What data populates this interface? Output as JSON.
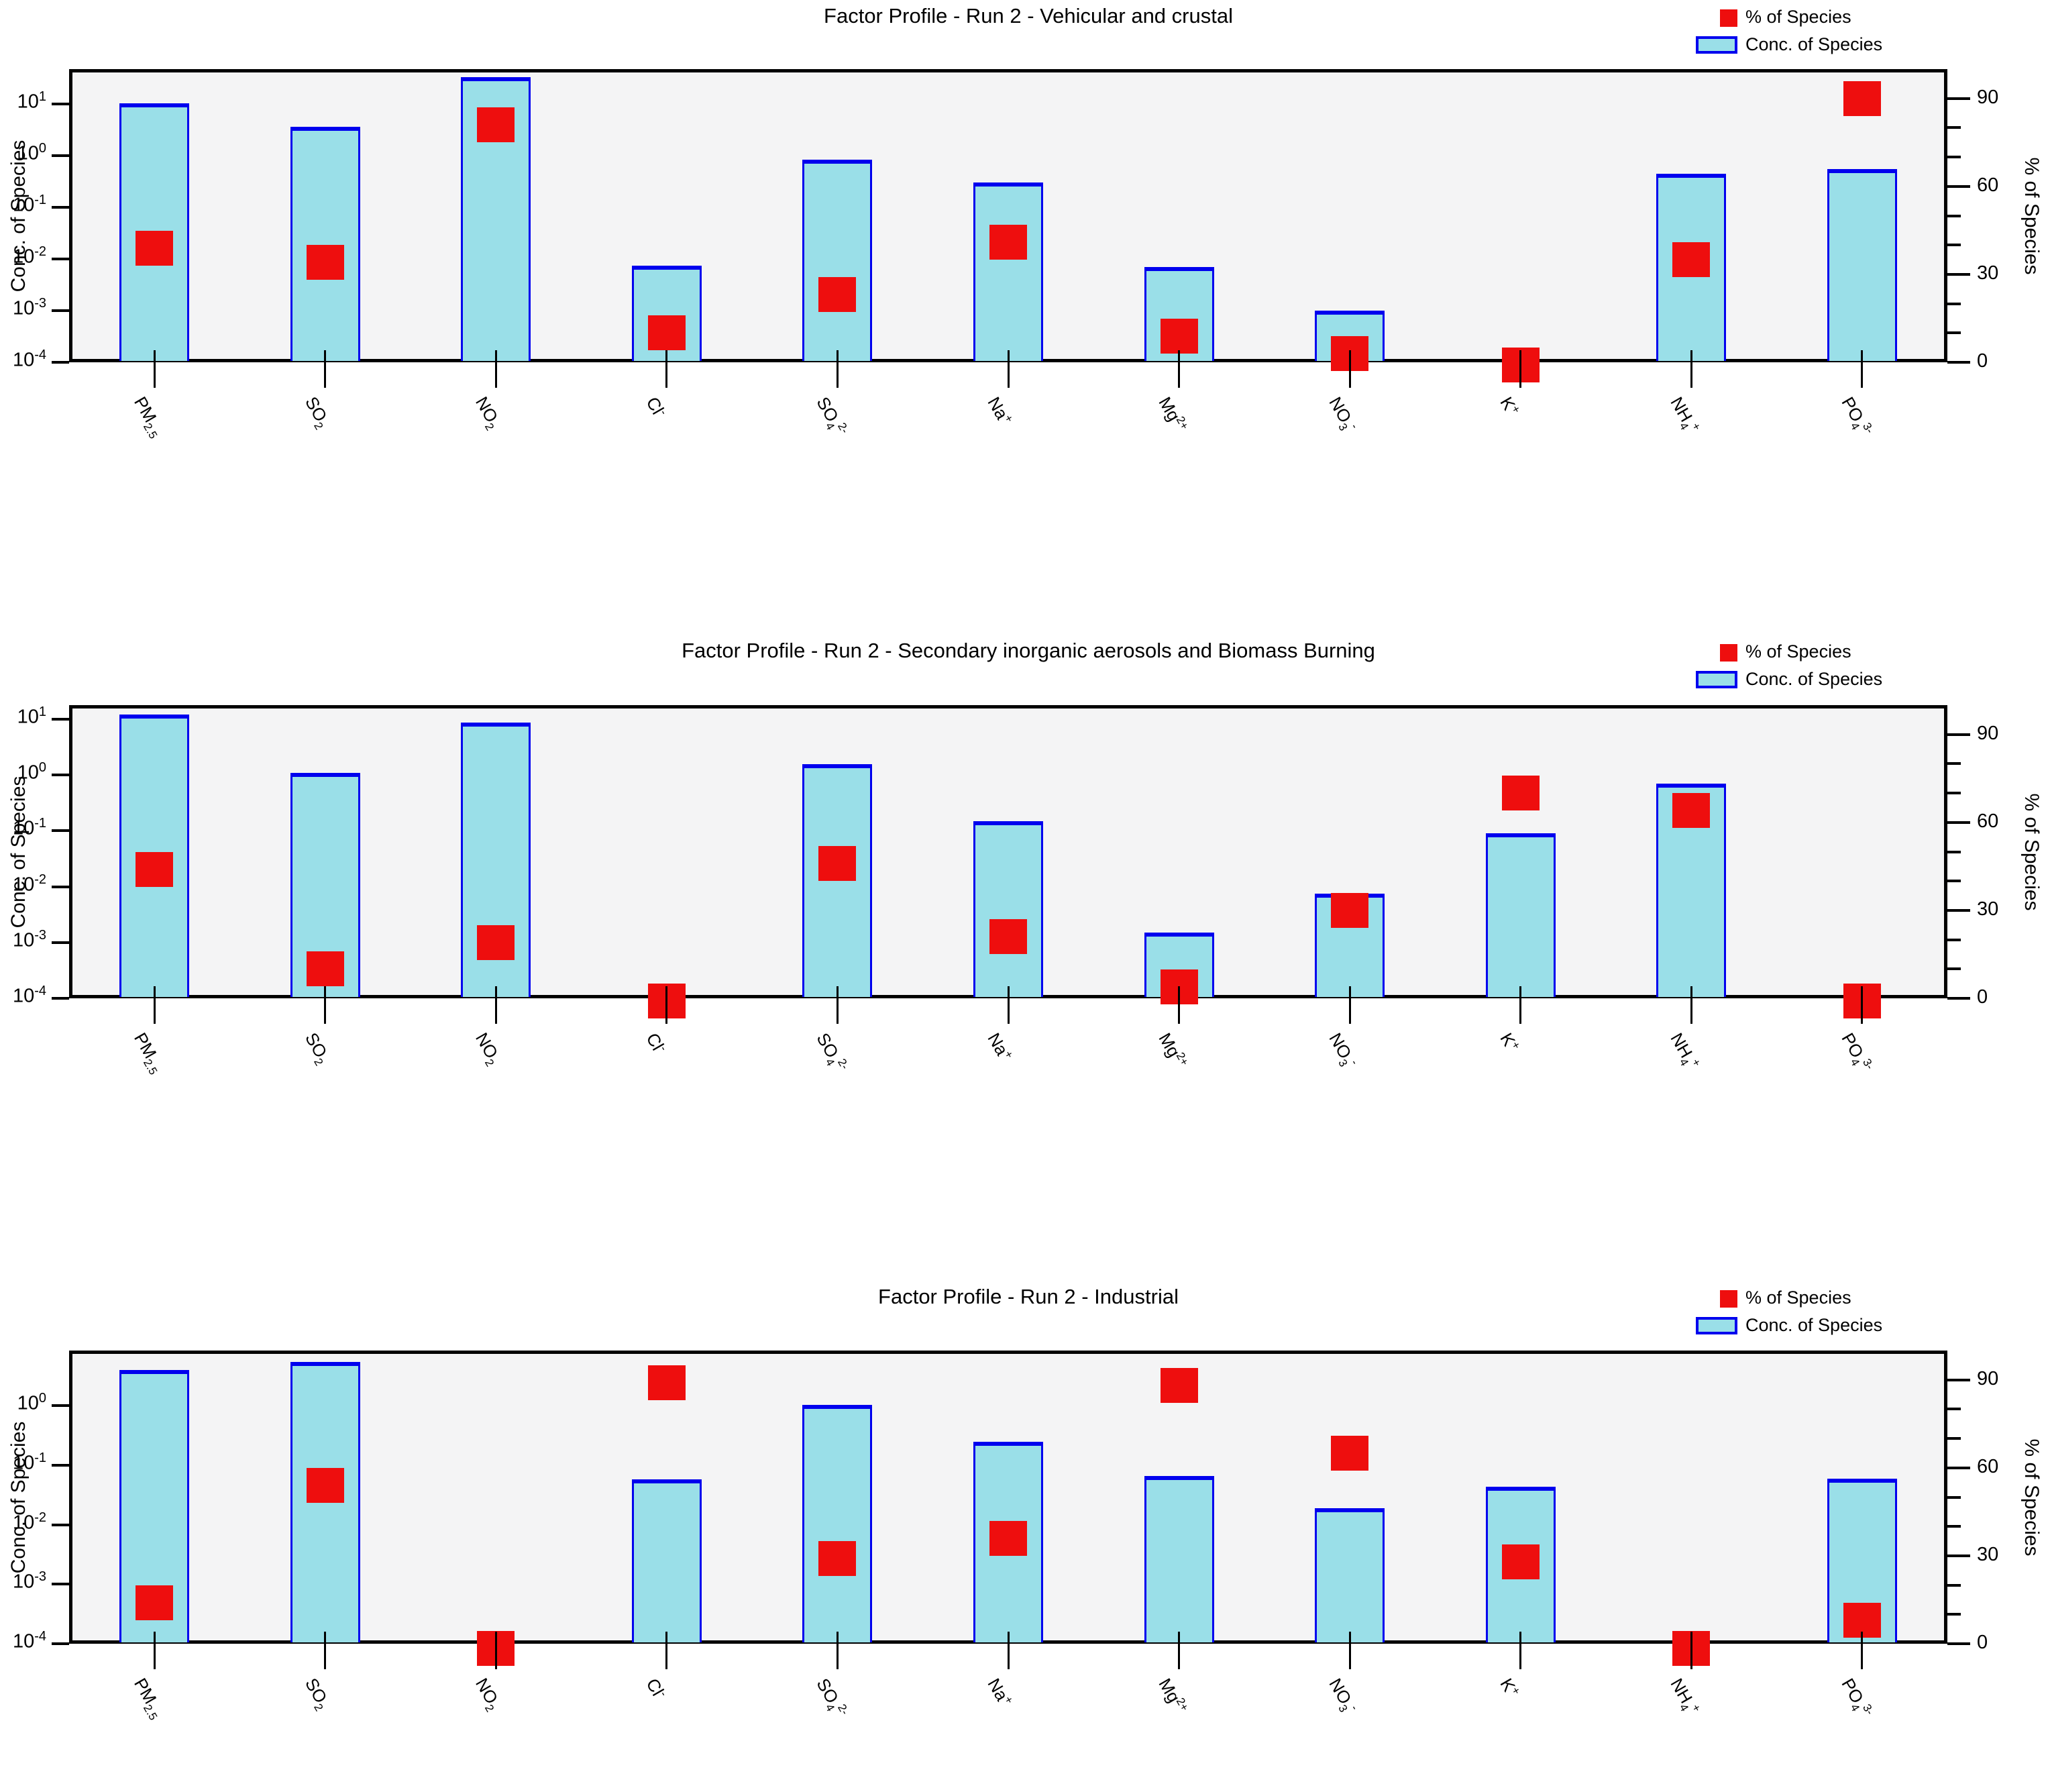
{
  "figure": {
    "left_axis_label": "Conc. of Species",
    "right_axis_label": "% of Species",
    "legend": {
      "marker_label": "% of Species",
      "bar_label": "Conc. of Species"
    },
    "colors": {
      "bar_fill": "#9adfe8",
      "bar_border": "#0000ee",
      "marker": "#ee0e0e",
      "plot_background": "#f4f4f5",
      "axis": "#000000"
    }
  },
  "species": [
    {
      "name": "PM2.5",
      "parts": [
        [
          "n",
          "PM"
        ],
        [
          "b",
          "2.5"
        ]
      ]
    },
    {
      "name": "SO2",
      "parts": [
        [
          "n",
          "SO"
        ],
        [
          "b",
          "2"
        ]
      ]
    },
    {
      "name": "NO2",
      "parts": [
        [
          "n",
          "NO"
        ],
        [
          "b",
          "2"
        ]
      ]
    },
    {
      "name": "Cl-",
      "parts": [
        [
          "n",
          "Cl"
        ],
        [
          "p",
          "-"
        ]
      ]
    },
    {
      "name": "SO42-",
      "parts": [
        [
          "n",
          "SO"
        ],
        [
          "b",
          "4"
        ],
        [
          "p",
          "2-"
        ]
      ]
    },
    {
      "name": "Na+",
      "parts": [
        [
          "n",
          "Na"
        ],
        [
          "p",
          "+"
        ]
      ]
    },
    {
      "name": "Mg2+",
      "parts": [
        [
          "n",
          "Mg"
        ],
        [
          "p",
          "2+"
        ]
      ]
    },
    {
      "name": "NO3-",
      "parts": [
        [
          "n",
          "NO"
        ],
        [
          "b",
          "3"
        ],
        [
          "p",
          "-"
        ]
      ]
    },
    {
      "name": "K+",
      "parts": [
        [
          "n",
          "K"
        ],
        [
          "p",
          "+"
        ]
      ]
    },
    {
      "name": "NH4+",
      "parts": [
        [
          "n",
          "NH"
        ],
        [
          "b",
          "4"
        ],
        [
          "p",
          "+"
        ]
      ]
    },
    {
      "name": "PO43-",
      "parts": [
        [
          "n",
          "PO"
        ],
        [
          "b",
          "4"
        ],
        [
          "p",
          "3-"
        ]
      ]
    }
  ],
  "chart_data": [
    {
      "type": "bar",
      "title": "Factor Profile - Run 2 - Vehicular and crustal",
      "categories": [
        "PM2.5",
        "SO2",
        "NO2",
        "Cl-",
        "SO42-",
        "Na+",
        "Mg2+",
        "NO3-",
        "K+",
        "NH4+",
        "PO43-"
      ],
      "series": [
        {
          "name": "Conc. of Species",
          "axis": "left",
          "scale": "log",
          "values": [
            10.5,
            3.6,
            33,
            0.0075,
            0.85,
            0.3,
            0.007,
            0.001,
            null,
            0.45,
            0.55
          ]
        },
        {
          "name": "% of Species",
          "axis": "right",
          "scale": "linear",
          "values": [
            39,
            34,
            81,
            10,
            23,
            41,
            9,
            3,
            -1,
            35,
            90
          ]
        }
      ],
      "left_axis": {
        "label": "Conc. of Species",
        "scale": "log",
        "ylim_exp": [
          -4,
          1.68
        ],
        "tick_exponents": [
          1,
          0,
          -1,
          -2,
          -3,
          -4
        ]
      },
      "right_axis": {
        "label": "% of Species",
        "ylim": [
          0,
          100
        ],
        "major_ticks": [
          90,
          60,
          30,
          0
        ],
        "minor_step": 10
      },
      "legend_position": "top-right",
      "grid": false
    },
    {
      "type": "bar",
      "title": "Factor Profile - Run 2 - Secondary inorganic aerosols and Biomass Burning",
      "categories": [
        "PM2.5",
        "SO2",
        "NO2",
        "Cl-",
        "SO42-",
        "Na+",
        "Mg2+",
        "NO3-",
        "K+",
        "NH4+",
        "PO43-"
      ],
      "series": [
        {
          "name": "Conc. of Species",
          "axis": "left",
          "scale": "log",
          "values": [
            12,
            1.1,
            8.6,
            null,
            1.55,
            0.15,
            0.0015,
            0.0075,
            0.09,
            0.7,
            null
          ]
        },
        {
          "name": "% of Species",
          "axis": "right",
          "scale": "linear",
          "values": [
            44,
            10,
            19,
            -1,
            46,
            21,
            4,
            30,
            70,
            64,
            -1
          ]
        }
      ],
      "left_axis": {
        "label": "Conc. of Species",
        "scale": "log",
        "ylim_exp": [
          -4,
          1.25
        ],
        "tick_exponents": [
          1,
          0,
          -1,
          -2,
          -3,
          -4
        ]
      },
      "right_axis": {
        "label": "% of Species",
        "ylim": [
          0,
          100
        ],
        "major_ticks": [
          90,
          60,
          30,
          0
        ],
        "minor_step": 10
      },
      "legend_position": "top-right",
      "grid": false
    },
    {
      "type": "bar",
      "title": "Factor Profile - Run 2 - Industrial",
      "categories": [
        "PM2.5",
        "SO2",
        "NO2",
        "Cl-",
        "SO42-",
        "Na+",
        "Mg2+",
        "NO3-",
        "K+",
        "NH4+",
        "PO43-"
      ],
      "series": [
        {
          "name": "Conc. of Species",
          "axis": "left",
          "scale": "log",
          "values": [
            4.0,
            5.5,
            null,
            0.058,
            1.05,
            0.25,
            0.066,
            0.019,
            0.044,
            null,
            0.06
          ]
        },
        {
          "name": "% of Species",
          "axis": "right",
          "scale": "linear",
          "values": [
            14,
            54,
            -1.5,
            89,
            29,
            36,
            88,
            65,
            28,
            -1.5,
            8
          ]
        }
      ],
      "left_axis": {
        "label": "Conc. of Species",
        "scale": "log",
        "ylim_exp": [
          -4,
          0.93
        ],
        "tick_exponents": [
          0,
          -1,
          -2,
          -3,
          -4
        ]
      },
      "right_axis": {
        "label": "% of Species",
        "ylim": [
          0,
          100
        ],
        "major_ticks": [
          90,
          60,
          30,
          0
        ],
        "minor_step": 10
      },
      "legend_position": "top-right",
      "grid": false
    }
  ]
}
